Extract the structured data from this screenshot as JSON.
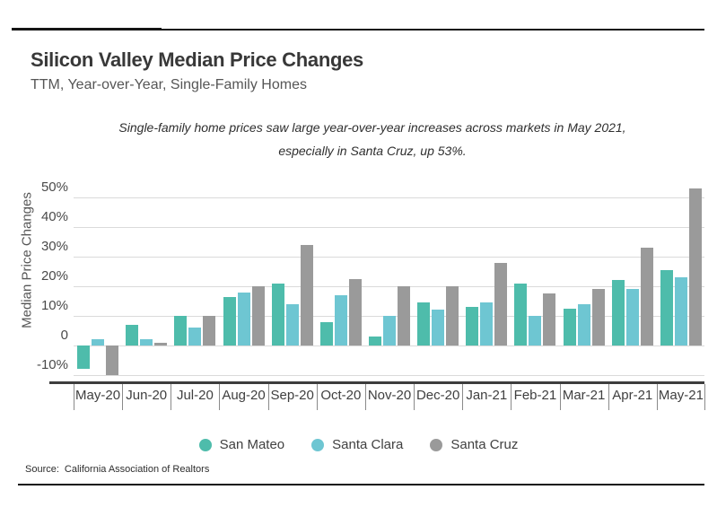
{
  "header": {
    "title": "Silicon Valley Median Price Changes",
    "subtitle": "TTM, Year-over-Year, Single-Family Homes"
  },
  "annotation": {
    "line1": "Single-family home prices saw large year-over-year increases across markets in May 2021,",
    "line2": "especially in Santa Cruz, up 53%."
  },
  "chart_data": {
    "type": "bar",
    "title": "Silicon Valley Median Price Changes",
    "subtitle": "TTM, Year-over-Year, Single-Family Homes",
    "xlabel": "",
    "ylabel": "Median Price Changes",
    "ylim": [
      -13,
      55
    ],
    "grid": "horizontal",
    "legend_position": "bottom",
    "yticks": [
      {
        "label": "50%",
        "value": 50
      },
      {
        "label": "40%",
        "value": 40
      },
      {
        "label": "30%",
        "value": 30
      },
      {
        "label": "20%",
        "value": 20
      },
      {
        "label": "10%",
        "value": 10
      },
      {
        "label": "0",
        "value": 0
      },
      {
        "label": "-10%",
        "value": -10
      }
    ],
    "categories": [
      "May-20",
      "Jun-20",
      "Jul-20",
      "Aug-20",
      "Sep-20",
      "Oct-20",
      "Nov-20",
      "Dec-20",
      "Jan-21",
      "Feb-21",
      "Mar-21",
      "Apr-21",
      "May-21"
    ],
    "series": [
      {
        "name": "San Mateo",
        "color": "#4ebcab",
        "values": [
          -8,
          7,
          10,
          16.5,
          21,
          8,
          3,
          14.5,
          13,
          21,
          12.5,
          22,
          25.5
        ]
      },
      {
        "name": "Santa Clara",
        "color": "#6ec6d2",
        "values": [
          2,
          2,
          6,
          18,
          14,
          17,
          10,
          12,
          14.5,
          10,
          14,
          19,
          23
        ]
      },
      {
        "name": "Santa Cruz",
        "color": "#9a9a9a",
        "values": [
          -10,
          1,
          10,
          20,
          34,
          22.5,
          20,
          20,
          28,
          17.5,
          19,
          33,
          53
        ]
      }
    ]
  },
  "legend": {
    "items": [
      {
        "label": "San Mateo",
        "color": "#4ebcab"
      },
      {
        "label": "Santa Clara",
        "color": "#6ec6d2"
      },
      {
        "label": "Santa Cruz",
        "color": "#9a9a9a"
      }
    ]
  },
  "source": {
    "label": "Source:",
    "text": "California Association of Realtors"
  },
  "colors": {
    "gridline": "#dadada",
    "axis_line": "#3d3d3d",
    "rule": "#151515"
  }
}
